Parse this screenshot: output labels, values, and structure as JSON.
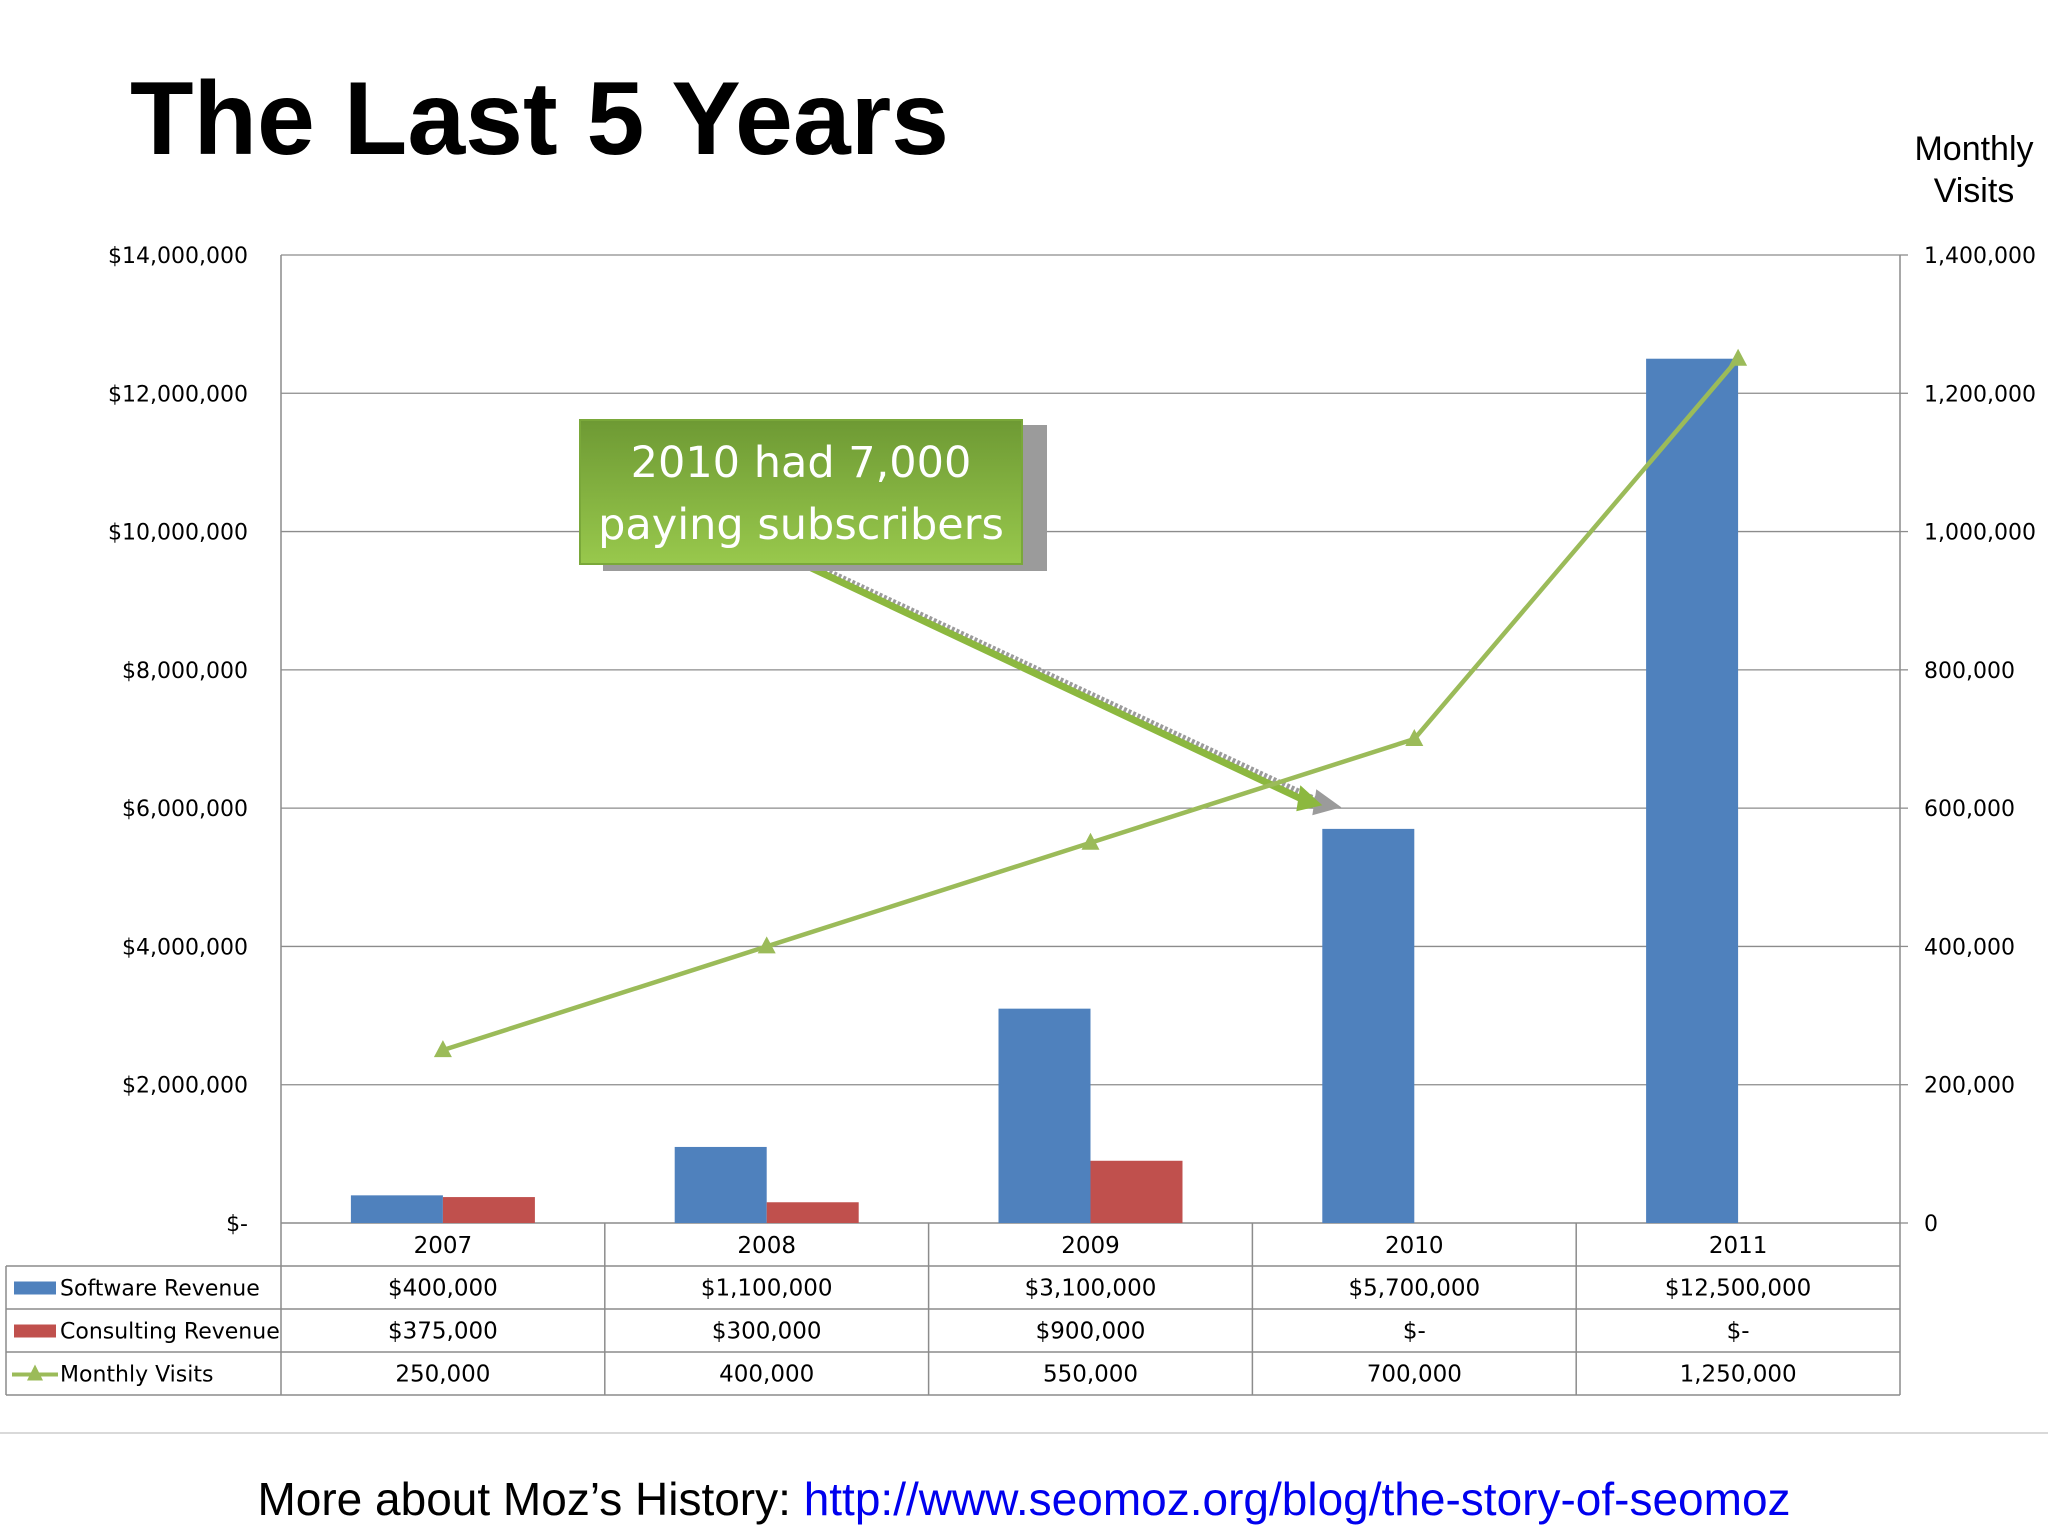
{
  "page": {
    "title": "The Last 5 Years",
    "footer": {
      "prefix": "More about Moz’s History: ",
      "link_text": "http://www.seomoz.org/blog/the-story-of-seomoz"
    },
    "callout": {
      "line1": "2010 had 7,000",
      "line2": "paying subscribers"
    }
  },
  "chart_data": {
    "type": "bar",
    "title": "",
    "categories": [
      "2007",
      "2008",
      "2009",
      "2010",
      "2011"
    ],
    "left_axis": {
      "ylim": [
        0,
        14000000
      ],
      "ticks": [
        0,
        2000000,
        4000000,
        6000000,
        8000000,
        10000000,
        12000000,
        14000000
      ],
      "tick_labels": [
        "$-",
        "$2,000,000",
        "$4,000,000",
        "$6,000,000",
        "$8,000,000",
        "$10,000,000",
        "$12,000,000",
        "$14,000,000"
      ]
    },
    "right_axis": {
      "title_lines": [
        "Monthly",
        "Visits"
      ],
      "ylim": [
        0,
        1400000
      ],
      "ticks": [
        0,
        200000,
        400000,
        600000,
        800000,
        1000000,
        1200000,
        1400000
      ],
      "tick_labels": [
        "0",
        "200,000",
        "400,000",
        "600,000",
        "800,000",
        "1,000,000",
        "1,200,000",
        "1,400,000"
      ]
    },
    "grid": true,
    "series": [
      {
        "name": "Software Revenue",
        "type": "bar",
        "axis": "left",
        "color": "#4f81bd",
        "values": [
          400000,
          1100000,
          3100000,
          5700000,
          12500000
        ],
        "table_values": [
          "$400,000",
          "$1,100,000",
          "$3,100,000",
          "$5,700,000",
          "$12,500,000"
        ]
      },
      {
        "name": "Consulting Revenue",
        "type": "bar",
        "axis": "left",
        "color": "#c0504d",
        "values": [
          375000,
          300000,
          900000,
          0,
          0
        ],
        "table_values": [
          "$375,000",
          "$300,000",
          "$900,000",
          "$-",
          "$-"
        ]
      },
      {
        "name": "Monthly Visits",
        "type": "line",
        "axis": "right",
        "color": "#9bbb59",
        "marker": "triangle",
        "values": [
          250000,
          400000,
          550000,
          700000,
          1250000
        ],
        "table_values": [
          "250,000",
          "400,000",
          "550,000",
          "700,000",
          "1,250,000"
        ]
      }
    ],
    "annotation": {
      "text": "2010 had 7,000 paying subscribers",
      "points_to_category": "2010",
      "color": "#8cb83f"
    }
  }
}
